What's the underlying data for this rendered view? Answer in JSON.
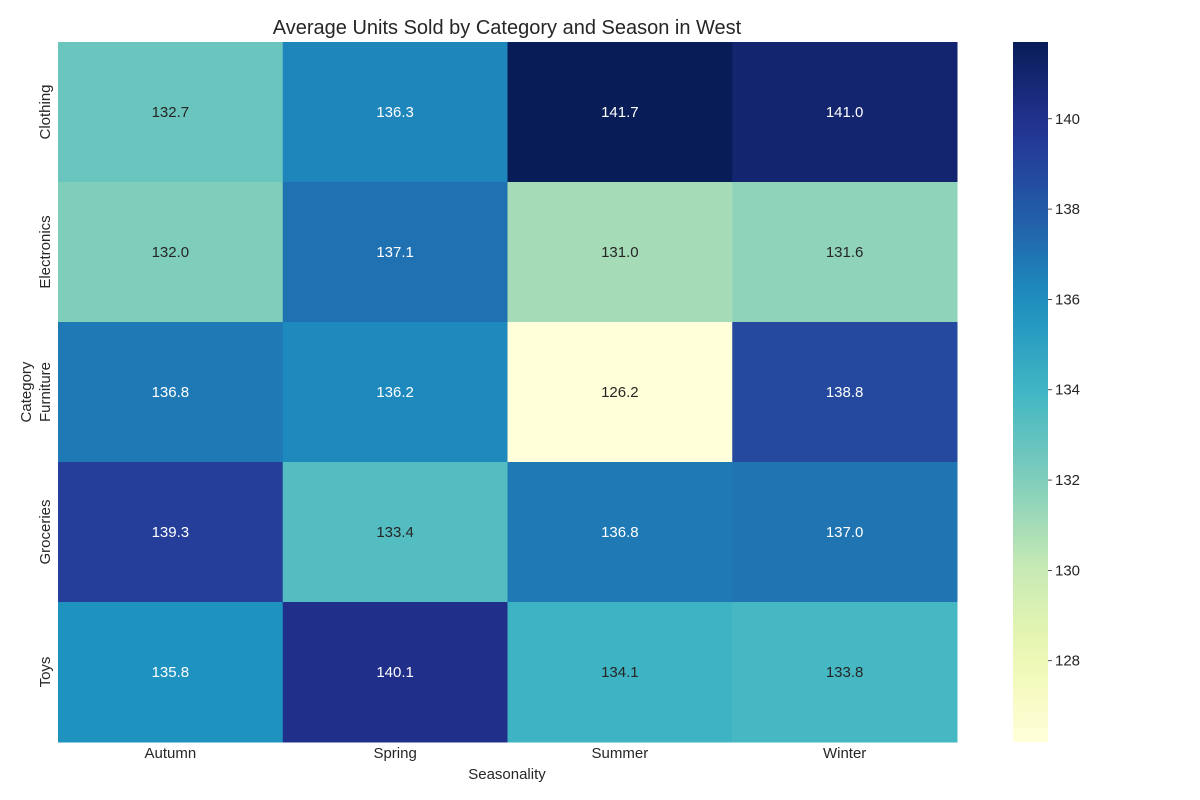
{
  "chart_data": {
    "type": "heatmap",
    "title": "Average Units Sold by Category and Season in West",
    "xlabel": "Seasonality",
    "ylabel": "Category",
    "x_categories": [
      "Autumn",
      "Spring",
      "Summer",
      "Winter"
    ],
    "y_categories": [
      "Clothing",
      "Electronics",
      "Furniture",
      "Groceries",
      "Toys"
    ],
    "values": [
      [
        132.7,
        136.3,
        141.7,
        141.0
      ],
      [
        132.0,
        137.1,
        131.0,
        131.6
      ],
      [
        136.8,
        136.2,
        126.2,
        138.8
      ],
      [
        139.3,
        133.4,
        136.8,
        137.0
      ],
      [
        135.8,
        140.1,
        134.1,
        133.8
      ]
    ],
    "value_format": "0.0",
    "colormap": "YlGnBu",
    "colorbar": {
      "range": [
        126.2,
        141.7
      ],
      "ticks": [
        128,
        130,
        132,
        134,
        136,
        138,
        140
      ]
    },
    "grid": false,
    "legend": "colorbar-right"
  }
}
